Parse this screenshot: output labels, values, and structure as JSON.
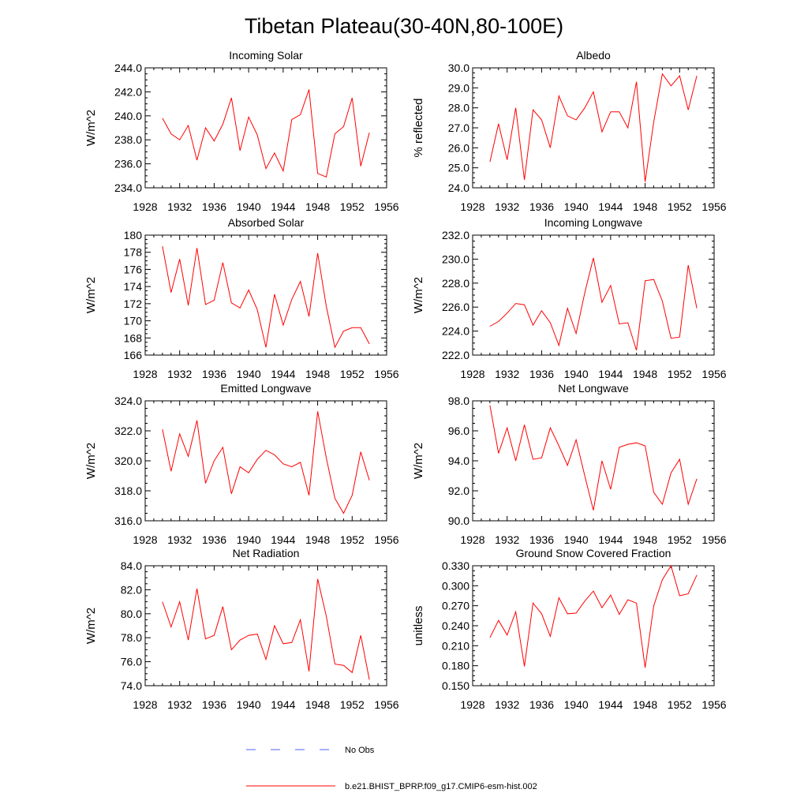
{
  "figure": {
    "title": "Tibetan Plateau(30-40N,80-100E)"
  },
  "colors": {
    "model_line": "#ff0000",
    "obs_line": "#5060ff",
    "axis": "#000000"
  },
  "legend": {
    "entries": [
      {
        "label": "No Obs",
        "style": "dashed",
        "color": "#5060ff"
      },
      {
        "label": "b.e21.BHIST_BPRP.f09_g17.CMIP6-esm-hist.002",
        "style": "solid",
        "color": "#ff0000"
      }
    ]
  },
  "chart_data": [
    {
      "type": "line",
      "title": "Incoming Solar",
      "xlabel": "",
      "ylabel": "W/m^2",
      "xlim": [
        1928,
        1956
      ],
      "ylim": [
        234.0,
        244.0
      ],
      "xticks": [
        1928,
        1932,
        1936,
        1940,
        1944,
        1948,
        1952,
        1956
      ],
      "yticks": [
        "234.0",
        "236.0",
        "238.0",
        "240.0",
        "242.0",
        "244.0"
      ],
      "x": [
        1930,
        1931,
        1932,
        1933,
        1934,
        1935,
        1936,
        1937,
        1938,
        1939,
        1940,
        1941,
        1942,
        1943,
        1944,
        1945,
        1946,
        1947,
        1948,
        1949,
        1950,
        1951,
        1952,
        1953,
        1954
      ],
      "series": [
        {
          "name": "b.e21.BHIST_BPRP.f09_g17.CMIP6-esm-hist.002",
          "values": [
            239.8,
            238.5,
            238.0,
            239.2,
            236.3,
            239.0,
            237.9,
            239.3,
            241.5,
            237.1,
            239.9,
            238.4,
            235.6,
            236.9,
            235.4,
            239.7,
            240.1,
            242.2,
            235.2,
            234.9,
            238.5,
            239.1,
            241.5,
            235.8,
            238.6
          ]
        }
      ]
    },
    {
      "type": "line",
      "title": "Albedo",
      "xlabel": "",
      "ylabel": "% reflected",
      "xlim": [
        1928,
        1956
      ],
      "ylim": [
        24.0,
        30.0
      ],
      "xticks": [
        1928,
        1932,
        1936,
        1940,
        1944,
        1948,
        1952,
        1956
      ],
      "yticks": [
        "24.0",
        "25.0",
        "26.0",
        "27.0",
        "28.0",
        "29.0",
        "30.0"
      ],
      "x": [
        1930,
        1931,
        1932,
        1933,
        1934,
        1935,
        1936,
        1937,
        1938,
        1939,
        1940,
        1941,
        1942,
        1943,
        1944,
        1945,
        1946,
        1947,
        1948,
        1949,
        1950,
        1951,
        1952,
        1953,
        1954
      ],
      "series": [
        {
          "name": "b.e21.BHIST_BPRP.f09_g17.CMIP6-esm-hist.002",
          "values": [
            25.3,
            27.2,
            25.4,
            28.0,
            24.4,
            27.9,
            27.4,
            26.0,
            28.6,
            27.6,
            27.4,
            28.0,
            28.8,
            26.8,
            27.8,
            27.8,
            27.0,
            29.3,
            24.3,
            27.3,
            29.7,
            29.1,
            29.6,
            27.9,
            29.6
          ]
        }
      ]
    },
    {
      "type": "line",
      "title": "Absorbed Solar",
      "xlabel": "",
      "ylabel": "W/m^2",
      "xlim": [
        1928,
        1956
      ],
      "ylim": [
        166,
        180
      ],
      "xticks": [
        1928,
        1932,
        1936,
        1940,
        1944,
        1948,
        1952,
        1956
      ],
      "yticks": [
        "166",
        "168",
        "170",
        "172",
        "174",
        "176",
        "178",
        "180"
      ],
      "x": [
        1930,
        1931,
        1932,
        1933,
        1934,
        1935,
        1936,
        1937,
        1938,
        1939,
        1940,
        1941,
        1942,
        1943,
        1944,
        1945,
        1946,
        1947,
        1948,
        1949,
        1950,
        1951,
        1952,
        1953,
        1954
      ],
      "series": [
        {
          "name": "b.e21.BHIST_BPRP.f09_g17.CMIP6-esm-hist.002",
          "values": [
            178.7,
            173.3,
            177.2,
            171.8,
            178.5,
            171.9,
            172.4,
            176.8,
            172.1,
            171.5,
            173.6,
            171.3,
            166.9,
            173.1,
            169.5,
            172.5,
            174.6,
            170.5,
            177.9,
            171.7,
            166.9,
            168.8,
            169.2,
            169.2,
            167.3
          ]
        }
      ]
    },
    {
      "type": "line",
      "title": "Incoming Longwave",
      "xlabel": "",
      "ylabel": "W/m^2",
      "xlim": [
        1928,
        1956
      ],
      "ylim": [
        222.0,
        232.0
      ],
      "xticks": [
        1928,
        1932,
        1936,
        1940,
        1944,
        1948,
        1952,
        1956
      ],
      "yticks": [
        "222.0",
        "224.0",
        "226.0",
        "228.0",
        "230.0",
        "232.0"
      ],
      "x": [
        1930,
        1931,
        1932,
        1933,
        1934,
        1935,
        1936,
        1937,
        1938,
        1939,
        1940,
        1941,
        1942,
        1943,
        1944,
        1945,
        1946,
        1947,
        1948,
        1949,
        1950,
        1951,
        1952,
        1953,
        1954
      ],
      "series": [
        {
          "name": "b.e21.BHIST_BPRP.f09_g17.CMIP6-esm-hist.002",
          "values": [
            224.4,
            224.8,
            225.5,
            226.3,
            226.2,
            224.5,
            225.7,
            224.7,
            222.8,
            225.9,
            223.8,
            227.2,
            230.1,
            226.4,
            227.8,
            224.6,
            224.7,
            222.4,
            228.2,
            228.3,
            226.5,
            223.4,
            223.5,
            229.5,
            225.9
          ]
        }
      ]
    },
    {
      "type": "line",
      "title": "Emitted Longwave",
      "xlabel": "",
      "ylabel": "W/m^2",
      "xlim": [
        1928,
        1956
      ],
      "ylim": [
        316.0,
        324.0
      ],
      "xticks": [
        1928,
        1932,
        1936,
        1940,
        1944,
        1948,
        1952,
        1956
      ],
      "yticks": [
        "316.0",
        "318.0",
        "320.0",
        "322.0",
        "324.0"
      ],
      "x": [
        1930,
        1931,
        1932,
        1933,
        1934,
        1935,
        1936,
        1937,
        1938,
        1939,
        1940,
        1941,
        1942,
        1943,
        1944,
        1945,
        1946,
        1947,
        1948,
        1949,
        1950,
        1951,
        1952,
        1953,
        1954
      ],
      "series": [
        {
          "name": "b.e21.BHIST_BPRP.f09_g17.CMIP6-esm-hist.002",
          "values": [
            322.1,
            319.3,
            321.8,
            320.3,
            322.7,
            318.5,
            320.0,
            320.9,
            317.8,
            319.6,
            319.2,
            320.1,
            320.7,
            320.4,
            319.8,
            319.6,
            319.9,
            317.7,
            323.3,
            320.2,
            317.5,
            316.5,
            317.7,
            320.6,
            318.7
          ]
        }
      ]
    },
    {
      "type": "line",
      "title": "Net Longwave",
      "xlabel": "",
      "ylabel": "W/m^2",
      "xlim": [
        1928,
        1956
      ],
      "ylim": [
        90.0,
        98.0
      ],
      "xticks": [
        1928,
        1932,
        1936,
        1940,
        1944,
        1948,
        1952,
        1956
      ],
      "yticks": [
        "90.0",
        "92.0",
        "94.0",
        "96.0",
        "98.0"
      ],
      "x": [
        1930,
        1931,
        1932,
        1933,
        1934,
        1935,
        1936,
        1937,
        1938,
        1939,
        1940,
        1941,
        1942,
        1943,
        1944,
        1945,
        1946,
        1947,
        1948,
        1949,
        1950,
        1951,
        1952,
        1953,
        1954
      ],
      "series": [
        {
          "name": "b.e21.BHIST_BPRP.f09_g17.CMIP6-esm-hist.002",
          "values": [
            97.7,
            94.5,
            96.2,
            94.0,
            96.4,
            94.1,
            94.2,
            96.2,
            95.0,
            93.7,
            95.4,
            93.0,
            90.7,
            94.0,
            92.1,
            94.9,
            95.1,
            95.2,
            95.0,
            91.9,
            91.1,
            93.2,
            94.1,
            91.1,
            92.8
          ]
        }
      ]
    },
    {
      "type": "line",
      "title": "Net Radiation",
      "xlabel": "",
      "ylabel": "W/m^2",
      "xlim": [
        1928,
        1956
      ],
      "ylim": [
        74.0,
        84.0
      ],
      "xticks": [
        1928,
        1932,
        1936,
        1940,
        1944,
        1948,
        1952,
        1956
      ],
      "yticks": [
        "74.0",
        "76.0",
        "78.0",
        "80.0",
        "82.0",
        "84.0"
      ],
      "x": [
        1930,
        1931,
        1932,
        1933,
        1934,
        1935,
        1936,
        1937,
        1938,
        1939,
        1940,
        1941,
        1942,
        1943,
        1944,
        1945,
        1946,
        1947,
        1948,
        1949,
        1950,
        1951,
        1952,
        1953,
        1954
      ],
      "series": [
        {
          "name": "b.e21.BHIST_BPRP.f09_g17.CMIP6-esm-hist.002",
          "values": [
            81.0,
            78.9,
            81.0,
            77.8,
            82.1,
            77.9,
            78.2,
            80.6,
            77.0,
            77.8,
            78.2,
            78.3,
            76.2,
            79.0,
            77.5,
            77.6,
            79.5,
            75.2,
            82.9,
            79.8,
            75.8,
            75.7,
            75.1,
            78.2,
            74.5
          ]
        }
      ]
    },
    {
      "type": "line",
      "title": "Ground Snow Covered Fraction",
      "xlabel": "",
      "ylabel": "unitless",
      "xlim": [
        1928,
        1956
      ],
      "ylim": [
        0.15,
        0.33
      ],
      "xticks": [
        1928,
        1932,
        1936,
        1940,
        1944,
        1948,
        1952,
        1956
      ],
      "yticks": [
        "0.150",
        "0.180",
        "0.210",
        "0.240",
        "0.270",
        "0.300",
        "0.330"
      ],
      "x": [
        1930,
        1931,
        1932,
        1933,
        1934,
        1935,
        1936,
        1937,
        1938,
        1939,
        1940,
        1941,
        1942,
        1943,
        1944,
        1945,
        1946,
        1947,
        1948,
        1949,
        1950,
        1951,
        1952,
        1953,
        1954
      ],
      "series": [
        {
          "name": "b.e21.BHIST_BPRP.f09_g17.CMIP6-esm-hist.002",
          "values": [
            0.222,
            0.248,
            0.226,
            0.261,
            0.179,
            0.274,
            0.258,
            0.224,
            0.282,
            0.258,
            0.259,
            0.277,
            0.292,
            0.267,
            0.286,
            0.257,
            0.279,
            0.274,
            0.177,
            0.27,
            0.309,
            0.33,
            0.285,
            0.288,
            0.316
          ]
        }
      ]
    }
  ]
}
